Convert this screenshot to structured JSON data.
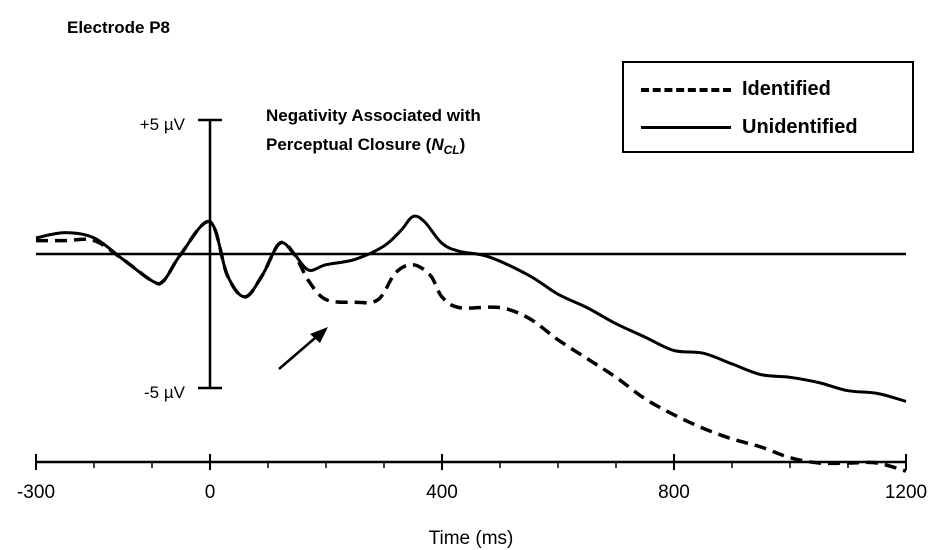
{
  "panel_title": "Electrode P8",
  "annotation": {
    "line1": "Negativity Associated with",
    "line2_prefix": "Perceptual Closure (",
    "symbol": "N",
    "symbol_sub": "CL",
    "line2_suffix": ")"
  },
  "y_markers": {
    "top": "+5 µV",
    "bottom": "-5 µV"
  },
  "colors": {
    "line": "#000000",
    "background": "#ffffff"
  },
  "chart_data": {
    "type": "line",
    "title": "",
    "xlabel": "Time (ms)",
    "ylabel": "",
    "xlim": [
      -300,
      1200
    ],
    "ylim": [
      -9,
      9
    ],
    "xticks": [
      -300,
      0,
      400,
      800,
      1200
    ],
    "xtick_labels": [
      "-300",
      "0",
      "400",
      "800",
      "1200"
    ],
    "y_scale_bar": [
      -5,
      5
    ],
    "grid": false,
    "legend_position": "top-right",
    "series": [
      {
        "name": "Identified",
        "style": "dashed",
        "points": [
          [
            -300,
            0.5
          ],
          [
            -250,
            0.5
          ],
          [
            -200,
            0.5
          ],
          [
            -150,
            -0.2
          ],
          [
            -100,
            -1.0
          ],
          [
            -80,
            -1.0
          ],
          [
            -50,
            0
          ],
          [
            0,
            1.2
          ],
          [
            30,
            -0.8
          ],
          [
            60,
            -1.6
          ],
          [
            90,
            -0.8
          ],
          [
            120,
            0.4
          ],
          [
            145,
            0
          ],
          [
            170,
            -1.0
          ],
          [
            200,
            -1.7
          ],
          [
            250,
            -1.8
          ],
          [
            290,
            -1.7
          ],
          [
            320,
            -0.7
          ],
          [
            350,
            -0.4
          ],
          [
            380,
            -0.8
          ],
          [
            400,
            -1.6
          ],
          [
            430,
            -2.0
          ],
          [
            500,
            -2.0
          ],
          [
            550,
            -2.4
          ],
          [
            600,
            -3.2
          ],
          [
            650,
            -3.9
          ],
          [
            700,
            -4.6
          ],
          [
            750,
            -5.4
          ],
          [
            800,
            -6.0
          ],
          [
            850,
            -6.5
          ],
          [
            900,
            -6.9
          ],
          [
            950,
            -7.2
          ],
          [
            1000,
            -7.6
          ],
          [
            1050,
            -7.8
          ],
          [
            1100,
            -7.8
          ],
          [
            1150,
            -7.8
          ],
          [
            1200,
            -8.1
          ]
        ]
      },
      {
        "name": "Unidentified",
        "style": "solid",
        "points": [
          [
            -300,
            0.6
          ],
          [
            -250,
            0.8
          ],
          [
            -200,
            0.6
          ],
          [
            -150,
            -0.2
          ],
          [
            -100,
            -1.0
          ],
          [
            -80,
            -1.0
          ],
          [
            -50,
            0
          ],
          [
            0,
            1.2
          ],
          [
            30,
            -0.8
          ],
          [
            60,
            -1.6
          ],
          [
            90,
            -0.8
          ],
          [
            120,
            0.4
          ],
          [
            145,
            0
          ],
          [
            170,
            -0.6
          ],
          [
            200,
            -0.4
          ],
          [
            250,
            -0.2
          ],
          [
            300,
            0.3
          ],
          [
            330,
            0.9
          ],
          [
            350,
            1.4
          ],
          [
            370,
            1.2
          ],
          [
            400,
            0.4
          ],
          [
            430,
            0.1
          ],
          [
            480,
            -0.1
          ],
          [
            550,
            -0.8
          ],
          [
            600,
            -1.5
          ],
          [
            650,
            -2.0
          ],
          [
            700,
            -2.6
          ],
          [
            750,
            -3.1
          ],
          [
            800,
            -3.6
          ],
          [
            850,
            -3.7
          ],
          [
            900,
            -4.1
          ],
          [
            950,
            -4.5
          ],
          [
            1000,
            -4.6
          ],
          [
            1050,
            -4.8
          ],
          [
            1100,
            -5.1
          ],
          [
            1150,
            -5.2
          ],
          [
            1200,
            -5.5
          ]
        ]
      }
    ]
  }
}
